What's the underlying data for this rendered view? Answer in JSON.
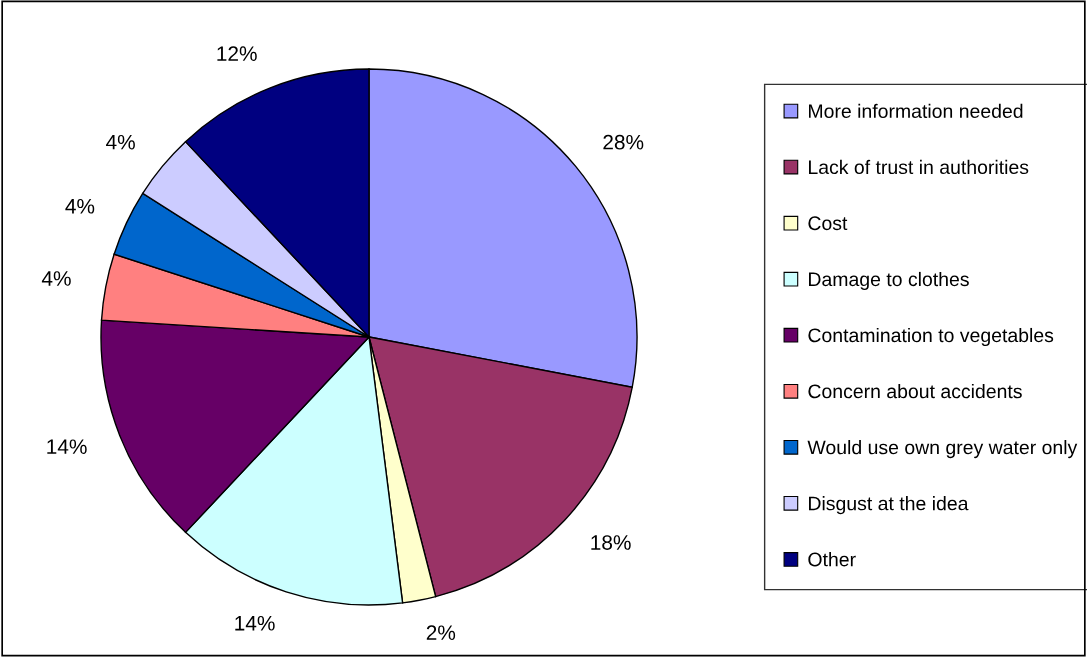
{
  "chart_data": {
    "type": "pie",
    "categories": [
      "More information needed",
      "Lack of trust in authorities",
      "Cost",
      "Damage to clothes",
      "Contamination to vegetables",
      "Concern about accidents",
      "Would use own grey water only",
      "Disgust at the idea",
      "Other"
    ],
    "values": [
      28,
      18,
      2,
      14,
      14,
      4,
      4,
      4,
      12
    ],
    "value_labels": [
      "28%",
      "18%",
      "2%",
      "14%",
      "14%",
      "4%",
      "4%",
      "4%",
      "12%"
    ],
    "colors": [
      "#9999ff",
      "#993366",
      "#ffffcc",
      "#ccffff",
      "#660066",
      "#ff8080",
      "#0066cc",
      "#ccccff",
      "#000080"
    ],
    "legend": "right"
  }
}
